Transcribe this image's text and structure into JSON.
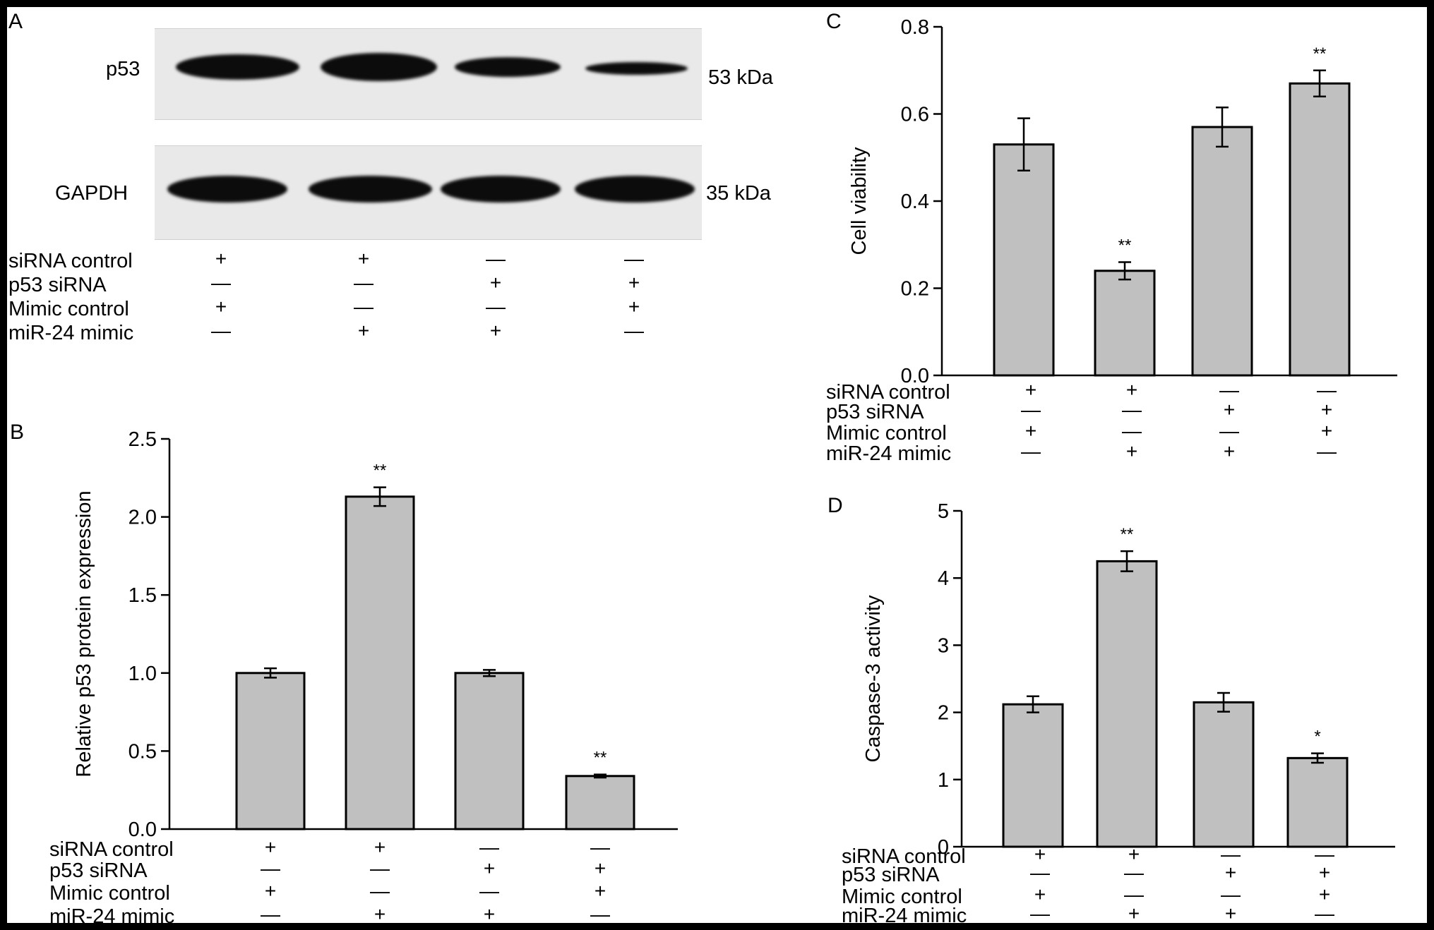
{
  "panels": {
    "A": {
      "letter": "A",
      "blots": [
        {
          "label": "p53",
          "size": "53 kDa",
          "intensity": [
            0.9,
            1.0,
            0.7,
            0.4
          ]
        },
        {
          "label": "GAPDH",
          "size": "35 kDa",
          "intensity": [
            0.95,
            0.95,
            0.95,
            0.95
          ]
        }
      ]
    },
    "B": {
      "letter": "B"
    },
    "C": {
      "letter": "C"
    },
    "D": {
      "letter": "D"
    }
  },
  "conditions": {
    "rows": [
      "siRNA control",
      "p53 siRNA",
      "Mimic control",
      "miR-24 mimic"
    ],
    "signs": [
      [
        "+",
        "+",
        "—",
        "—"
      ],
      [
        "—",
        "—",
        "+",
        "+"
      ],
      [
        "+",
        "—",
        "—",
        "+"
      ],
      [
        "—",
        "+",
        "+",
        "—"
      ]
    ]
  },
  "chart_data": [
    {
      "panel": "B",
      "type": "bar",
      "ylabel": "Relative p53 protein expression",
      "ylim": [
        0,
        2.5
      ],
      "yticks": [
        "0.0",
        "0.5",
        "1.0",
        "1.5",
        "2.0",
        "2.5"
      ],
      "values": [
        1.0,
        2.13,
        1.0,
        0.34
      ],
      "errors": [
        0.03,
        0.06,
        0.02,
        0.01
      ],
      "significance": [
        "",
        "**",
        "",
        "**"
      ],
      "bar_color": "#c0c0c0"
    },
    {
      "panel": "C",
      "type": "bar",
      "ylabel": "Cell viability",
      "ylim": [
        0,
        0.8
      ],
      "yticks": [
        "0.0",
        "0.2",
        "0.4",
        "0.6",
        "0.8"
      ],
      "values": [
        0.53,
        0.24,
        0.57,
        0.67
      ],
      "errors": [
        0.06,
        0.02,
        0.045,
        0.03
      ],
      "significance": [
        "",
        "**",
        "",
        "**"
      ],
      "bar_color": "#c0c0c0"
    },
    {
      "panel": "D",
      "type": "bar",
      "ylabel": "Caspase-3 activity",
      "ylim": [
        0,
        5
      ],
      "yticks": [
        "0",
        "1",
        "2",
        "3",
        "4",
        "5"
      ],
      "values": [
        2.12,
        4.25,
        2.15,
        1.32
      ],
      "errors": [
        0.12,
        0.15,
        0.14,
        0.07
      ],
      "significance": [
        "",
        "**",
        "",
        "*"
      ],
      "bar_color": "#c0c0c0"
    }
  ]
}
